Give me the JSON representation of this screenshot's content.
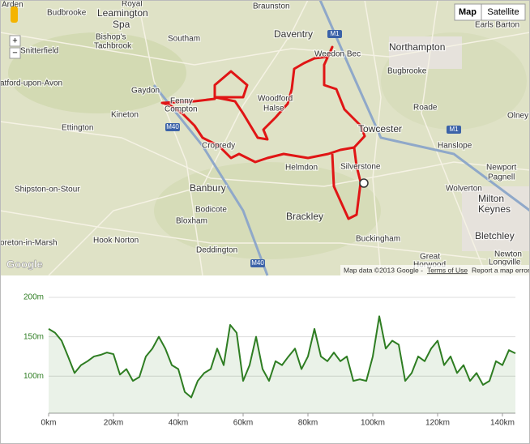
{
  "map": {
    "controls": {
      "map": "Map",
      "satellite": "Satellite",
      "zoom_in": "+",
      "zoom_out": "−"
    },
    "labels": [
      "Arden",
      "Budbrooke",
      "Royal",
      "Leamington",
      "Spa",
      "Braunston",
      "Daventry",
      "Weedon Bec",
      "Northampton",
      "Earls Barton",
      "Bishop's",
      "Tachbrook",
      "Southam",
      "Snitterfield",
      "atford-upon-Avon",
      "Gaydon",
      "Fenny",
      "Compton",
      "Woodford",
      "Halse",
      "Bugbrooke",
      "Roade",
      "Towcester",
      "Olney",
      "Ettington",
      "Kineton",
      "Cropredy",
      "Hanslope",
      "Newport",
      "Pagnell",
      "Silverstone",
      "Helmdon",
      "Shipston-on-Stour",
      "Banbury",
      "Bodicote",
      "Wolverton",
      "Milton",
      "Keynes",
      "Brackley",
      "Bloxham",
      "Buckingham",
      "Bletchley",
      "Hook Norton",
      "Deddington",
      "oreton-in-Marsh",
      "Great",
      "Horwood",
      "Newton",
      "Longville"
    ],
    "shields": [
      "M1",
      "M1",
      "M40",
      "M40"
    ],
    "logo": "Google",
    "attribution": "Map data ©2013 Google -",
    "terms": "Terms of Use",
    "report": "Report a map error"
  },
  "chart_data": {
    "type": "area",
    "x": [
      0,
      2,
      4,
      6,
      8,
      10,
      12,
      14,
      16,
      18,
      20,
      22,
      24,
      26,
      28,
      30,
      32,
      34,
      36,
      38,
      40,
      42,
      44,
      46,
      48,
      50,
      52,
      54,
      56,
      58,
      60,
      62,
      64,
      66,
      68,
      70,
      72,
      74,
      76,
      78,
      80,
      82,
      84,
      86,
      88,
      90,
      92,
      94,
      96,
      98,
      100,
      102,
      104,
      106,
      108,
      110,
      112,
      114,
      116,
      118,
      120,
      122,
      124,
      126,
      128,
      130,
      132,
      134,
      136,
      138,
      140,
      142,
      144
    ],
    "y": [
      160,
      155,
      145,
      125,
      104,
      114,
      119,
      125,
      127,
      130,
      128,
      102,
      109,
      94,
      99,
      125,
      135,
      150,
      135,
      114,
      109,
      80,
      73,
      94,
      104,
      109,
      135,
      114,
      165,
      155,
      94,
      114,
      150,
      109,
      94,
      119,
      114,
      125,
      135,
      109,
      125,
      160,
      125,
      119,
      130,
      119,
      125,
      94,
      96,
      94,
      125,
      176,
      135,
      145,
      140,
      94,
      104,
      125,
      119,
      135,
      145,
      114,
      125,
      104,
      114,
      94,
      104,
      89,
      94,
      119,
      114,
      133,
      129
    ],
    "color": "#2e7d22",
    "xlim": [
      0,
      144
    ],
    "ylim": [
      53,
      200
    ],
    "xticks": [
      {
        "value": 0,
        "label": "0km"
      },
      {
        "value": 20,
        "label": "20km"
      },
      {
        "value": 40,
        "label": "40km"
      },
      {
        "value": 60,
        "label": "60km"
      },
      {
        "value": 80,
        "label": "80km"
      },
      {
        "value": 100,
        "label": "100km"
      },
      {
        "value": 120,
        "label": "120km"
      },
      {
        "value": 140,
        "label": "140km"
      }
    ],
    "yticks": [
      {
        "value": 100,
        "label": "100m"
      },
      {
        "value": 150,
        "label": "150m"
      },
      {
        "value": 200,
        "label": "200m"
      }
    ],
    "grid": true
  }
}
